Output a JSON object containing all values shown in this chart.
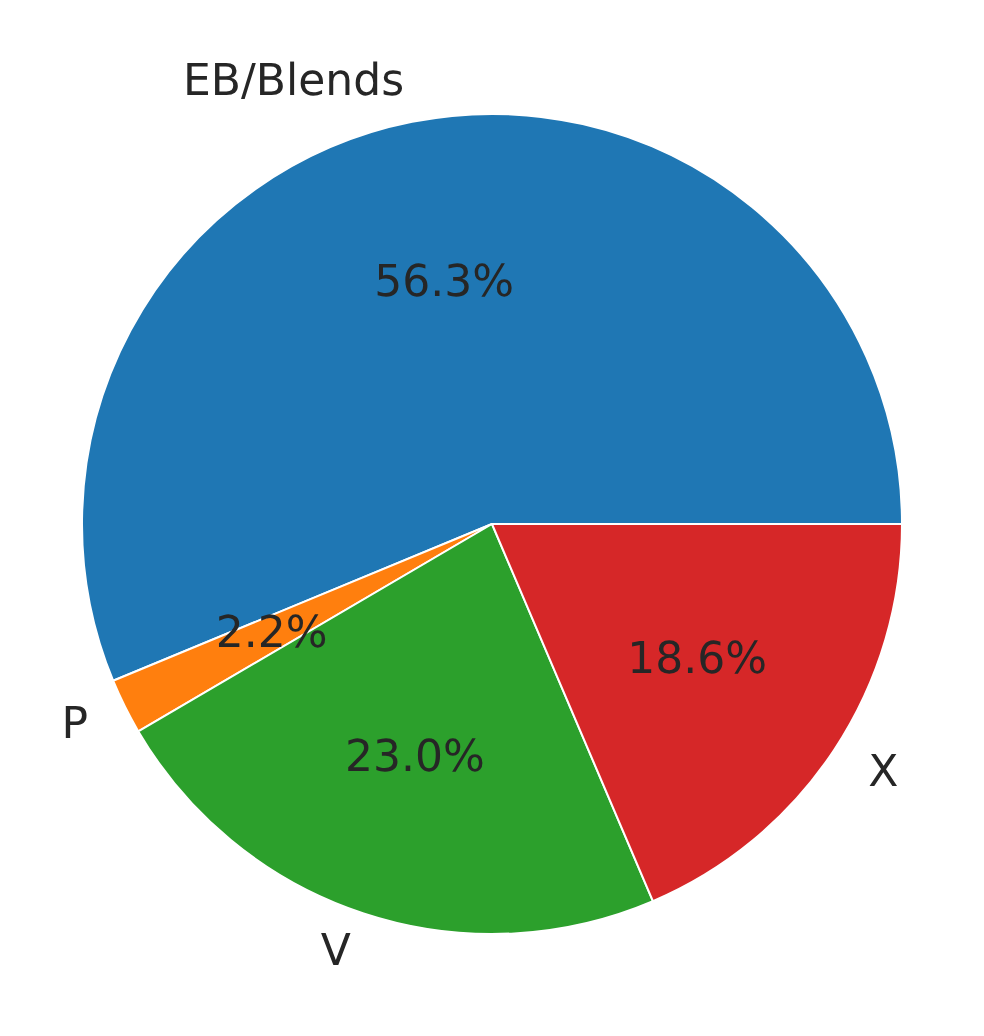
{
  "chart_data": {
    "type": "pie",
    "categories": [
      "EB/Blends",
      "P",
      "V",
      "X"
    ],
    "values": [
      56.3,
      2.2,
      23.0,
      18.6
    ],
    "colors": [
      "#1f77b4",
      "#ff7f0e",
      "#2ca02c",
      "#d62728"
    ],
    "value_labels": [
      "56.3%",
      "2.2%",
      "23.0%",
      "18.6%"
    ]
  }
}
